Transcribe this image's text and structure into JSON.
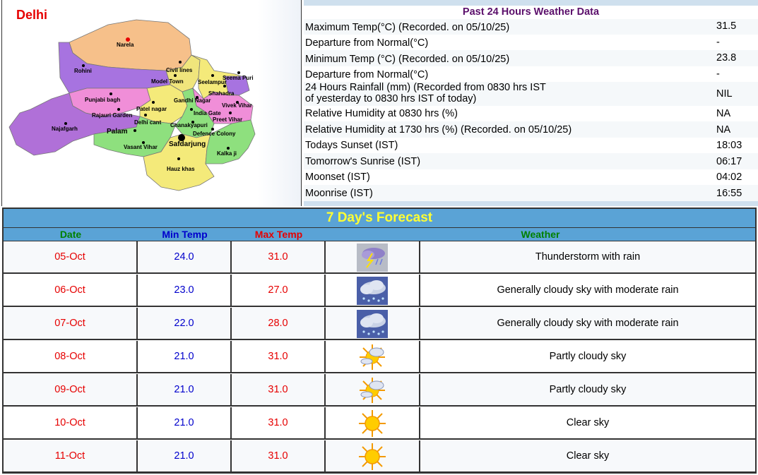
{
  "map": {
    "title": "Delhi",
    "places": [
      "Narela",
      "Rohini",
      "Civil lines",
      "Seema Puri",
      "Model Town",
      "Seelampur",
      "Shahadra",
      "Punjabi bagh",
      "Gandhi Nagar",
      "Vivek Vihar",
      "Patel nagar",
      "India Gate",
      "Rajauri Garden",
      "Preet Vihar",
      "Delhi cant",
      "Najafgarh",
      "Chanakyapuri",
      "Palam",
      "Defence Colony",
      "Safdarjung",
      "Vasant Vihar",
      "Kalka ji",
      "Hauz khas"
    ],
    "colors": {
      "north": "#f6c08a",
      "west": "#a773e0",
      "central": "#f0e57c",
      "east": "#f08ed8",
      "southwest": "#b070d8",
      "south": "#f4ea7a",
      "southeast": "#8ee07e",
      "bg": "#ffffff"
    }
  },
  "past24": {
    "title": "Past 24 Hours Weather Data",
    "rows": [
      {
        "label": "Maximum Temp(°C) (Recorded. on 05/10/25)",
        "value": "31.5"
      },
      {
        "label": "Departure from Normal(°C)",
        "value": "-"
      },
      {
        "label": "Minimum Temp (°C) (Recorded. on 05/10/25)",
        "value": "23.8"
      },
      {
        "label": "Departure from Normal(°C)",
        "value": "-"
      },
      {
        "label": "24 Hours Rainfall (mm) (Recorded from 0830 hrs IST",
        "label2": "of yesterday to 0830 hrs IST of today)",
        "value": "NIL"
      },
      {
        "label": "Relative Humidity at 0830 hrs (%)",
        "value": "NA"
      },
      {
        "label": "Relative Humidity at 1730 hrs (%) (Recorded. on 05/10/25)",
        "value": "NA"
      },
      {
        "label": "Todays Sunset (IST)",
        "value": "18:03"
      },
      {
        "label": "Tomorrow's Sunrise (IST)",
        "value": "06:17"
      },
      {
        "label": "Moonset (IST)",
        "value": "04:02"
      },
      {
        "label": "Moonrise (IST)",
        "value": "16:55"
      }
    ]
  },
  "forecast": {
    "title": "7 Day's Forecast",
    "headers": {
      "date": "Date",
      "min": "Min Temp",
      "max": "Max Temp",
      "weather": "Weather"
    },
    "days": [
      {
        "date": "05-Oct",
        "min": "24.0",
        "max": "31.0",
        "icon": "thunderstorm-icon",
        "weather": "Thunderstorm with rain"
      },
      {
        "date": "06-Oct",
        "min": "23.0",
        "max": "27.0",
        "icon": "rain-cloud-icon",
        "weather": "Generally cloudy sky with moderate rain"
      },
      {
        "date": "07-Oct",
        "min": "22.0",
        "max": "28.0",
        "icon": "rain-cloud-icon",
        "weather": "Generally cloudy sky with moderate rain"
      },
      {
        "date": "08-Oct",
        "min": "21.0",
        "max": "31.0",
        "icon": "partly-cloudy-icon",
        "weather": "Partly cloudy sky"
      },
      {
        "date": "09-Oct",
        "min": "21.0",
        "max": "31.0",
        "icon": "partly-cloudy-icon",
        "weather": "Partly cloudy sky"
      },
      {
        "date": "10-Oct",
        "min": "21.0",
        "max": "31.0",
        "icon": "sun-icon",
        "weather": "Clear sky"
      },
      {
        "date": "11-Oct",
        "min": "21.0",
        "max": "31.0",
        "icon": "sun-icon",
        "weather": "Clear sky"
      }
    ]
  }
}
